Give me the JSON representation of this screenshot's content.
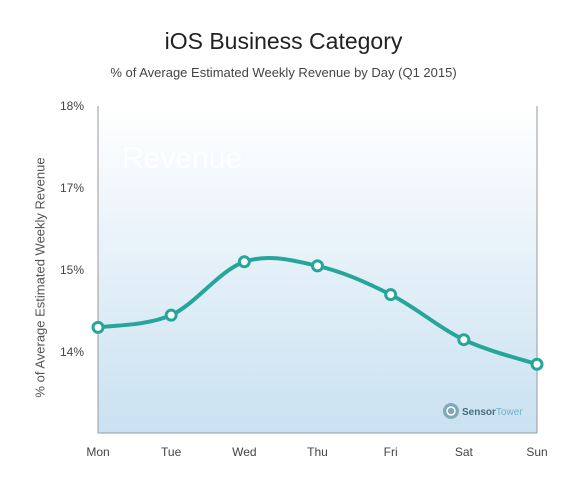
{
  "chart_data": {
    "type": "line",
    "title": "iOS Business Category",
    "subtitle": "% of Average Estimated Weekly Revenue by Day (Q1 2015)",
    "xlabel": "",
    "ylabel": "% of  Average Estimated Weekly Revenue",
    "categories": [
      "Mon",
      "Tue",
      "Wed",
      "Thu",
      "Fri",
      "Sat",
      "Sun"
    ],
    "values": [
      14.3,
      14.45,
      15.1,
      15.05,
      14.7,
      14.15,
      13.85
    ],
    "y_tick_labels": [
      "18%",
      "17%",
      "15%",
      "14%"
    ],
    "series_color": "#26a69a",
    "plot_background": [
      "#ffffff",
      "#c9e1f1"
    ],
    "grid": false,
    "legend": "none"
  },
  "watermark": {
    "text": "Revenue",
    "brand_sensor": "Sensor",
    "brand_tower": "Tower"
  }
}
